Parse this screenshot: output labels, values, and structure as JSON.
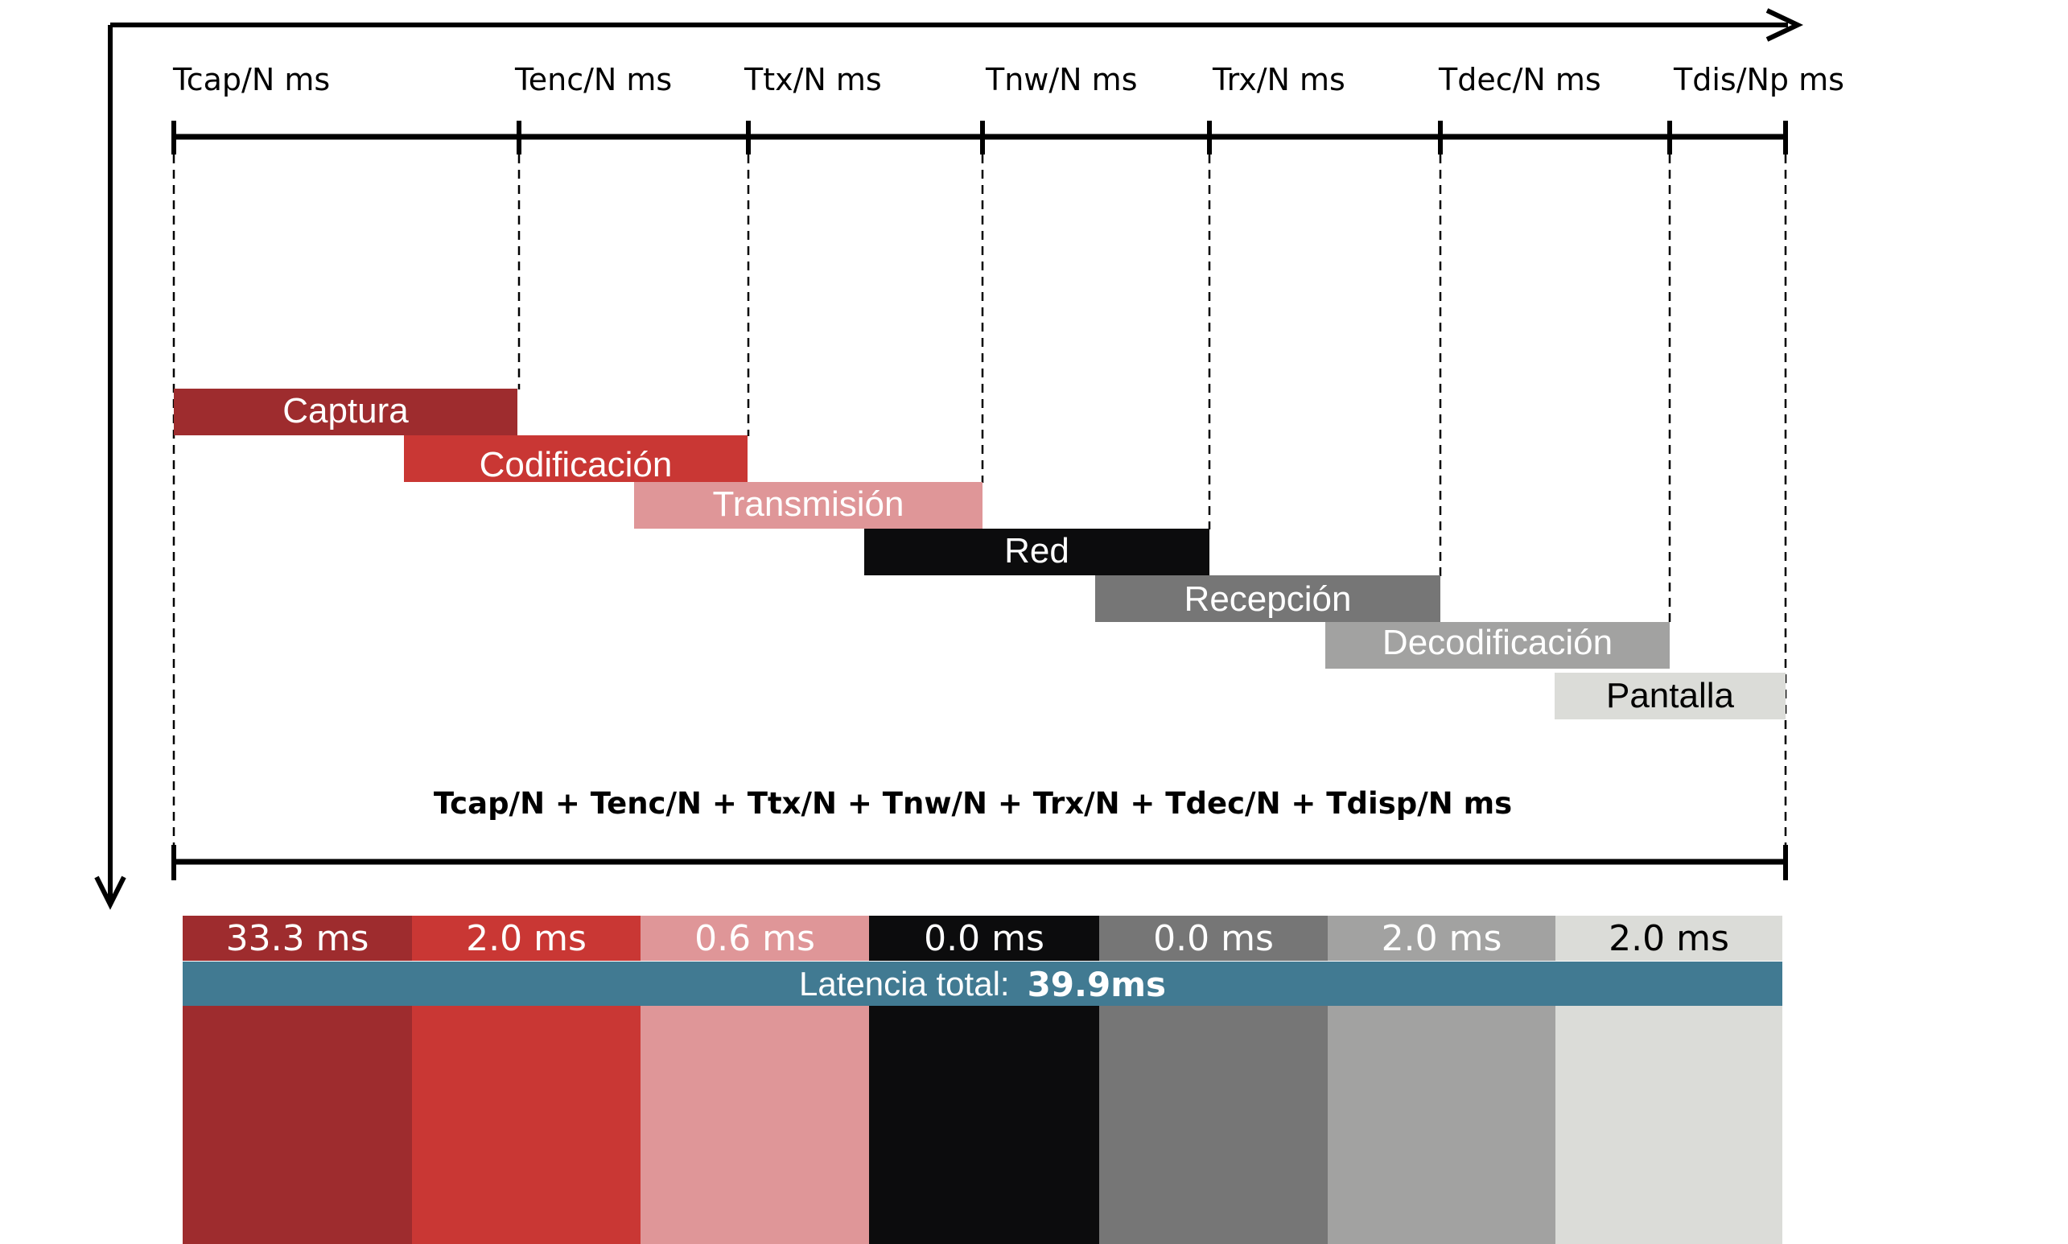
{
  "timeline": {
    "tick_labels": [
      "Tcap/N ms",
      "Tenc/N ms",
      "Ttx/N ms",
      "Tnw/N ms",
      "Trx/N ms",
      "Tdec/N ms",
      "Tdis/Np ms"
    ],
    "formula": "Tcap/N + Tenc/N + Ttx/N + Tnw/N + Trx/N + Tdec/N + Tdisp/N ms"
  },
  "stages": [
    {
      "name": "Captura",
      "color": "#9e2c2e",
      "text_color": "#ffffff"
    },
    {
      "name": "Codificación",
      "color": "#c93734",
      "text_color": "#ffffff"
    },
    {
      "name": "Transmisión",
      "color": "#df9698",
      "text_color": "#ffffff"
    },
    {
      "name": "Red",
      "color": "#0c0c0d",
      "text_color": "#ffffff"
    },
    {
      "name": "Recepción",
      "color": "#767676",
      "text_color": "#ffffff"
    },
    {
      "name": "Decodificación",
      "color": "#a2a2a1",
      "text_color": "#ffffff"
    },
    {
      "name": "Pantalla",
      "color": "#dbdcd8",
      "text_color": "#000000"
    }
  ],
  "latencies": [
    "33.3 ms",
    "2.0 ms",
    "0.6 ms",
    "0.0 ms",
    "0.0 ms",
    "2.0 ms",
    "2.0 ms"
  ],
  "total": {
    "label": "Latencia total:",
    "value": "39.9ms",
    "color": "#417a92"
  }
}
